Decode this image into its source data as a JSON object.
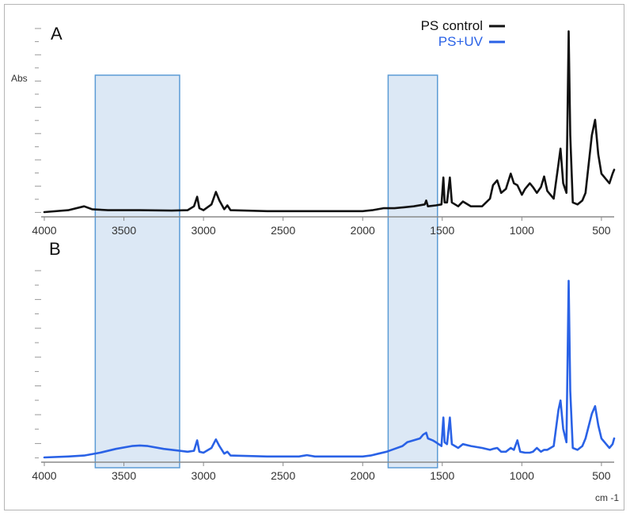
{
  "legend": {
    "items": [
      {
        "label": "PS control",
        "color": "#111111"
      },
      {
        "label": "PS+UV",
        "color": "#2a62e6"
      }
    ]
  },
  "chart_data": [
    {
      "type": "line",
      "panel_label": "A",
      "ylabel": "Abs",
      "xlabel": "",
      "xlim": [
        4000,
        420
      ],
      "x_reversed": true,
      "ylim": [
        0,
        1.0
      ],
      "x_ticks": [
        4000,
        3500,
        3000,
        2500,
        2000,
        1500,
        1000,
        500
      ],
      "y_tick_labels": false,
      "series": [
        {
          "name": "PS control",
          "color": "#111111",
          "points": [
            [
              4000,
              0.0
            ],
            [
              3850,
              0.01
            ],
            [
              3750,
              0.03
            ],
            [
              3700,
              0.015
            ],
            [
              3600,
              0.01
            ],
            [
              3400,
              0.01
            ],
            [
              3200,
              0.008
            ],
            [
              3100,
              0.01
            ],
            [
              3060,
              0.03
            ],
            [
              3040,
              0.08
            ],
            [
              3026,
              0.02
            ],
            [
              3000,
              0.01
            ],
            [
              2950,
              0.04
            ],
            [
              2922,
              0.105
            ],
            [
              2900,
              0.06
            ],
            [
              2870,
              0.015
            ],
            [
              2850,
              0.035
            ],
            [
              2830,
              0.01
            ],
            [
              2600,
              0.005
            ],
            [
              2200,
              0.005
            ],
            [
              2000,
              0.005
            ],
            [
              1940,
              0.01
            ],
            [
              1870,
              0.02
            ],
            [
              1800,
              0.02
            ],
            [
              1740,
              0.025
            ],
            [
              1680,
              0.03
            ],
            [
              1610,
              0.04
            ],
            [
              1601,
              0.06
            ],
            [
              1590,
              0.03
            ],
            [
              1540,
              0.035
            ],
            [
              1505,
              0.04
            ],
            [
              1493,
              0.18
            ],
            [
              1485,
              0.05
            ],
            [
              1470,
              0.05
            ],
            [
              1452,
              0.18
            ],
            [
              1440,
              0.05
            ],
            [
              1400,
              0.03
            ],
            [
              1370,
              0.055
            ],
            [
              1320,
              0.03
            ],
            [
              1250,
              0.03
            ],
            [
              1200,
              0.07
            ],
            [
              1181,
              0.14
            ],
            [
              1155,
              0.165
            ],
            [
              1130,
              0.1
            ],
            [
              1100,
              0.12
            ],
            [
              1070,
              0.2
            ],
            [
              1050,
              0.15
            ],
            [
              1028,
              0.14
            ],
            [
              1000,
              0.09
            ],
            [
              980,
              0.12
            ],
            [
              950,
              0.15
            ],
            [
              930,
              0.13
            ],
            [
              906,
              0.1
            ],
            [
              880,
              0.13
            ],
            [
              860,
              0.185
            ],
            [
              840,
              0.11
            ],
            [
              800,
              0.07
            ],
            [
              770,
              0.25
            ],
            [
              757,
              0.33
            ],
            [
              740,
              0.15
            ],
            [
              720,
              0.1
            ],
            [
              706,
              0.94
            ],
            [
              696,
              0.4
            ],
            [
              680,
              0.05
            ],
            [
              650,
              0.04
            ],
            [
              620,
              0.06
            ],
            [
              600,
              0.1
            ],
            [
              560,
              0.4
            ],
            [
              540,
              0.48
            ],
            [
              520,
              0.3
            ],
            [
              500,
              0.2
            ],
            [
              470,
              0.17
            ],
            [
              450,
              0.15
            ],
            [
              430,
              0.2
            ],
            [
              420,
              0.22
            ]
          ]
        }
      ]
    },
    {
      "type": "line",
      "panel_label": "B",
      "ylabel": "",
      "xlabel": "cm -1",
      "xlim": [
        4000,
        420
      ],
      "x_reversed": true,
      "ylim": [
        0,
        1.0
      ],
      "x_ticks": [
        4000,
        3500,
        3000,
        2500,
        2000,
        1500,
        1000,
        500
      ],
      "y_tick_labels": false,
      "series": [
        {
          "name": "PS+UV",
          "color": "#2a62e6",
          "points": [
            [
              4000,
              0.0
            ],
            [
              3850,
              0.005
            ],
            [
              3750,
              0.01
            ],
            [
              3650,
              0.025
            ],
            [
              3550,
              0.045
            ],
            [
              3450,
              0.06
            ],
            [
              3400,
              0.063
            ],
            [
              3350,
              0.06
            ],
            [
              3250,
              0.045
            ],
            [
              3150,
              0.035
            ],
            [
              3100,
              0.03
            ],
            [
              3060,
              0.035
            ],
            [
              3040,
              0.09
            ],
            [
              3026,
              0.03
            ],
            [
              3000,
              0.025
            ],
            [
              2950,
              0.05
            ],
            [
              2922,
              0.095
            ],
            [
              2900,
              0.06
            ],
            [
              2870,
              0.02
            ],
            [
              2850,
              0.03
            ],
            [
              2830,
              0.01
            ],
            [
              2600,
              0.005
            ],
            [
              2400,
              0.005
            ],
            [
              2350,
              0.012
            ],
            [
              2300,
              0.005
            ],
            [
              2100,
              0.005
            ],
            [
              2000,
              0.005
            ],
            [
              1950,
              0.01
            ],
            [
              1900,
              0.02
            ],
            [
              1850,
              0.03
            ],
            [
              1800,
              0.045
            ],
            [
              1750,
              0.06
            ],
            [
              1720,
              0.08
            ],
            [
              1680,
              0.09
            ],
            [
              1640,
              0.1
            ],
            [
              1620,
              0.12
            ],
            [
              1601,
              0.13
            ],
            [
              1590,
              0.1
            ],
            [
              1560,
              0.09
            ],
            [
              1540,
              0.08
            ],
            [
              1505,
              0.06
            ],
            [
              1493,
              0.21
            ],
            [
              1485,
              0.08
            ],
            [
              1470,
              0.07
            ],
            [
              1452,
              0.21
            ],
            [
              1440,
              0.07
            ],
            [
              1400,
              0.05
            ],
            [
              1370,
              0.07
            ],
            [
              1320,
              0.06
            ],
            [
              1250,
              0.05
            ],
            [
              1200,
              0.04
            ],
            [
              1181,
              0.045
            ],
            [
              1155,
              0.05
            ],
            [
              1130,
              0.03
            ],
            [
              1100,
              0.03
            ],
            [
              1070,
              0.05
            ],
            [
              1050,
              0.04
            ],
            [
              1028,
              0.09
            ],
            [
              1010,
              0.03
            ],
            [
              980,
              0.025
            ],
            [
              950,
              0.025
            ],
            [
              930,
              0.03
            ],
            [
              906,
              0.05
            ],
            [
              880,
              0.03
            ],
            [
              860,
              0.04
            ],
            [
              840,
              0.04
            ],
            [
              800,
              0.06
            ],
            [
              770,
              0.25
            ],
            [
              757,
              0.3
            ],
            [
              740,
              0.15
            ],
            [
              720,
              0.08
            ],
            [
              706,
              0.93
            ],
            [
              696,
              0.35
            ],
            [
              680,
              0.05
            ],
            [
              650,
              0.04
            ],
            [
              620,
              0.06
            ],
            [
              600,
              0.1
            ],
            [
              560,
              0.23
            ],
            [
              540,
              0.27
            ],
            [
              520,
              0.17
            ],
            [
              500,
              0.1
            ],
            [
              470,
              0.07
            ],
            [
              450,
              0.05
            ],
            [
              430,
              0.07
            ],
            [
              420,
              0.1
            ]
          ]
        }
      ]
    }
  ],
  "highlights": [
    {
      "x_from": 3680,
      "x_to": 3150,
      "color": "#dce8f5",
      "stroke": "#5b9bd5"
    },
    {
      "x_from": 1840,
      "x_to": 1530,
      "color": "#dce8f5",
      "stroke": "#5b9bd5"
    }
  ]
}
